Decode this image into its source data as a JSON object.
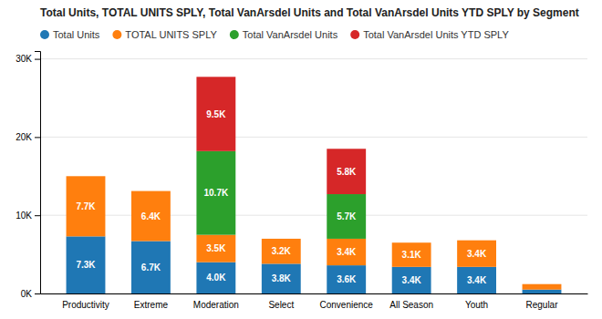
{
  "chart_data": {
    "type": "bar",
    "title": "Total Units, TOTAL UNITS SPLY, Total VanArsdel Units and Total VanArsdel Units YTD SPLY by Segment",
    "categories": [
      "Productivity",
      "Extreme",
      "Moderation",
      "Select",
      "Convenience",
      "All Season",
      "Youth",
      "Regular"
    ],
    "series": [
      {
        "name": "Total Units",
        "values": [
          7300,
          6700,
          4000,
          3800,
          3600,
          3400,
          3400,
          500
        ],
        "value_labels": [
          "7.3K",
          "6.7K",
          "4.0K",
          "3.8K",
          "3.6K",
          "3.4K",
          "3.4K",
          null
        ]
      },
      {
        "name": "TOTAL UNITS SPLY",
        "values": [
          7700,
          6400,
          3500,
          3200,
          3400,
          3100,
          3400,
          700
        ],
        "value_labels": [
          "7.7K",
          "6.4K",
          "3.5K",
          "3.2K",
          "3.4K",
          "3.1K",
          "3.4K",
          null
        ]
      },
      {
        "name": "Total VanArsdel Units",
        "values": [
          0,
          0,
          10700,
          0,
          5700,
          0,
          0,
          0
        ],
        "value_labels": [
          null,
          null,
          "10.7K",
          null,
          "5.7K",
          null,
          null,
          null
        ]
      },
      {
        "name": "Total VanArsdel Units YTD SPLY",
        "values": [
          0,
          0,
          9500,
          0,
          5800,
          0,
          0,
          0
        ],
        "value_labels": [
          null,
          null,
          "9.5K",
          null,
          "5.8K",
          null,
          null,
          null
        ]
      }
    ],
    "stacked": true,
    "data_labels": true,
    "ylim": [
      0,
      31000
    ],
    "yticks": [
      {
        "value": 0,
        "label": "0K"
      },
      {
        "value": 10000,
        "label": "10K"
      },
      {
        "value": 20000,
        "label": "20K"
      },
      {
        "value": 30000,
        "label": "30K"
      }
    ],
    "grid": true,
    "legend": "top"
  }
}
